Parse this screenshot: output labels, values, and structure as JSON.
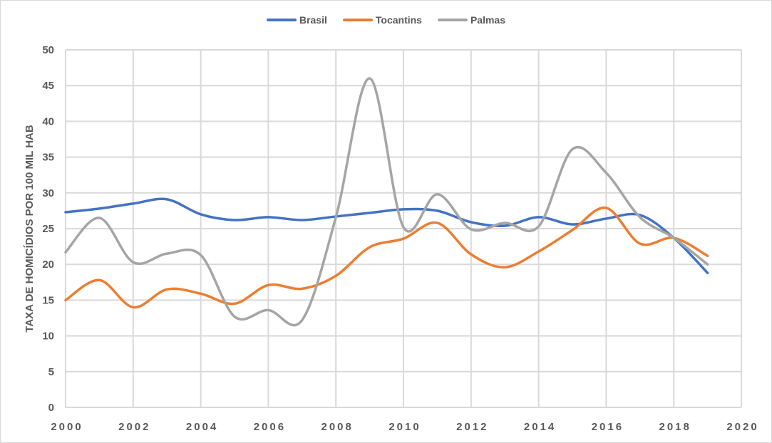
{
  "chart_data": {
    "type": "line",
    "title": "",
    "xlabel": "",
    "ylabel": "TAXA DE HOMICÍDIOS POR 100 MIL HAB",
    "xlim": [
      2000,
      2020
    ],
    "ylim": [
      0,
      50
    ],
    "x_ticks": [
      "2000",
      "2002",
      "2004",
      "2006",
      "2008",
      "2010",
      "2012",
      "2014",
      "2016",
      "2018",
      "2020"
    ],
    "y_ticks": [
      "0",
      "5",
      "10",
      "15",
      "20",
      "25",
      "30",
      "35",
      "40",
      "45",
      "50"
    ],
    "grid": true,
    "legend_position": "top",
    "smooth": true,
    "x": [
      2000,
      2001,
      2002,
      2003,
      2004,
      2005,
      2006,
      2007,
      2008,
      2009,
      2010,
      2011,
      2012,
      2013,
      2014,
      2015,
      2016,
      2017,
      2018,
      2019
    ],
    "series": [
      {
        "name": "Brasil",
        "color": "#4472c4",
        "values": [
          27.3,
          27.8,
          28.5,
          29.1,
          27.0,
          26.2,
          26.6,
          26.2,
          26.7,
          27.2,
          27.7,
          27.5,
          25.9,
          25.4,
          26.6,
          25.6,
          26.4,
          26.9,
          23.7,
          18.8
        ]
      },
      {
        "name": "Tocantins",
        "color": "#ed7d31",
        "values": [
          15.0,
          17.8,
          14.0,
          16.5,
          15.9,
          14.5,
          17.1,
          16.6,
          18.4,
          22.4,
          23.6,
          25.8,
          21.4,
          19.6,
          21.8,
          24.8,
          27.9,
          22.9,
          23.7,
          21.2
        ]
      },
      {
        "name": "Palmas",
        "color": "#a5a5a5",
        "values": [
          21.7,
          26.5,
          20.3,
          21.5,
          21.3,
          12.7,
          13.6,
          12.2,
          26.6,
          46.0,
          25.2,
          29.8,
          24.9,
          25.8,
          25.3,
          36.1,
          32.8,
          26.6,
          23.7,
          20.0
        ]
      }
    ]
  },
  "legend": {
    "items": [
      {
        "label": "Brasil",
        "color": "#4472c4"
      },
      {
        "label": "Tocantins",
        "color": "#ed7d31"
      },
      {
        "label": "Palmas",
        "color": "#a5a5a5"
      }
    ]
  }
}
